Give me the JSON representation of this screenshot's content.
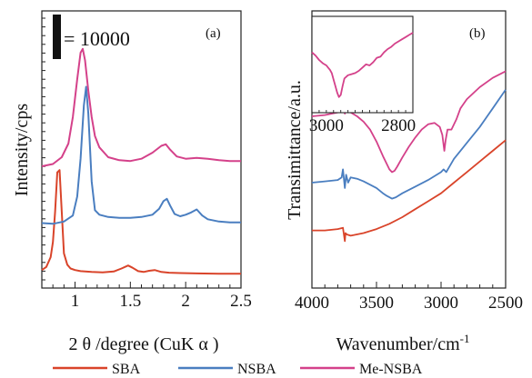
{
  "chart_data": [
    {
      "type": "line",
      "panel_label": "(a)",
      "xlabel": "2 θ /degree (CuK α )",
      "ylabel": "Intensity/cps",
      "scale_bar_label": "= 10000",
      "scale_bar_value": 10000,
      "xlim": [
        0.7,
        2.5
      ],
      "x_ticks": [
        "1",
        "1.5",
        "2",
        "2.5"
      ],
      "x_tick_values": [
        1.0,
        1.5,
        2.0,
        2.5
      ],
      "ylim": [
        0,
        30000
      ],
      "series": [
        {
          "name": "SBA",
          "color": "#d9442a",
          "x": [
            0.7,
            0.74,
            0.78,
            0.8,
            0.82,
            0.84,
            0.86,
            0.88,
            0.9,
            0.93,
            0.96,
            1.0,
            1.05,
            1.15,
            1.25,
            1.35,
            1.42,
            1.48,
            1.52,
            1.57,
            1.62,
            1.67,
            1.72,
            1.78,
            1.85,
            1.95,
            2.1,
            2.3,
            2.5
          ],
          "y": [
            1300,
            1700,
            3000,
            5000,
            9000,
            14200,
            14500,
            9000,
            3500,
            2000,
            1500,
            1300,
            1150,
            1050,
            1000,
            1100,
            1500,
            1900,
            1600,
            1150,
            1050,
            1200,
            1300,
            1050,
            950,
            900,
            850,
            800,
            800
          ]
        },
        {
          "name": "NSBA",
          "color": "#4a7ec0",
          "x": [
            0.7,
            0.8,
            0.9,
            0.98,
            1.02,
            1.05,
            1.08,
            1.1,
            1.12,
            1.15,
            1.18,
            1.22,
            1.3,
            1.4,
            1.5,
            1.6,
            1.7,
            1.76,
            1.8,
            1.83,
            1.86,
            1.9,
            1.95,
            2.0,
            2.05,
            2.1,
            2.15,
            2.2,
            2.3,
            2.4,
            2.5
          ],
          "y": [
            7500,
            7400,
            7700,
            8500,
            11000,
            16000,
            23000,
            25500,
            22000,
            13000,
            9200,
            8600,
            8300,
            8200,
            8200,
            8300,
            8600,
            9400,
            10400,
            10700,
            9800,
            8700,
            8400,
            8600,
            8900,
            9300,
            8500,
            8000,
            7700,
            7600,
            7600
          ]
        },
        {
          "name": "Me-NSBA",
          "color": "#d4418a",
          "x": [
            0.7,
            0.8,
            0.88,
            0.94,
            0.98,
            1.02,
            1.05,
            1.07,
            1.09,
            1.12,
            1.15,
            1.18,
            1.22,
            1.3,
            1.4,
            1.5,
            1.6,
            1.7,
            1.78,
            1.82,
            1.86,
            1.92,
            2.0,
            2.1,
            2.2,
            2.3,
            2.4,
            2.5
          ],
          "y": [
            15000,
            15300,
            16200,
            18000,
            21500,
            26500,
            30000,
            30500,
            29000,
            25000,
            21500,
            19000,
            17500,
            16200,
            15800,
            15700,
            16000,
            16800,
            17700,
            17900,
            17200,
            16300,
            16000,
            16100,
            16000,
            15800,
            15700,
            15700
          ]
        }
      ]
    },
    {
      "type": "line",
      "panel_label": "(b)",
      "xlabel": "Wavenumber/cm",
      "xlabel_superscript": "-1",
      "ylabel": "Transimittance/a.u.",
      "xlim": [
        4000,
        2500
      ],
      "x_ticks": [
        "4000",
        "3500",
        "3000",
        "2500"
      ],
      "x_tick_values": [
        4000,
        3500,
        3000,
        2500
      ],
      "ylim": [
        0,
        100
      ],
      "series": [
        {
          "name": "SBA",
          "color": "#d9442a",
          "x": [
            4000,
            3900,
            3800,
            3760,
            3745,
            3740,
            3730,
            3700,
            3600,
            3500,
            3400,
            3300,
            3200,
            3100,
            3000,
            2900,
            2800,
            2700,
            2600,
            2500
          ],
          "y": [
            20,
            20,
            20.5,
            21,
            16,
            19,
            18.5,
            18,
            19,
            20.5,
            22.5,
            25,
            28,
            31,
            34,
            38,
            42,
            46,
            50,
            54
          ]
        },
        {
          "name": "NSBA",
          "color": "#4a7ec0",
          "x": [
            4000,
            3900,
            3800,
            3770,
            3760,
            3745,
            3735,
            3720,
            3700,
            3650,
            3600,
            3500,
            3450,
            3420,
            3400,
            3380,
            3350,
            3300,
            3200,
            3100,
            3000,
            2980,
            2960,
            2900,
            2800,
            2700,
            2600,
            2500
          ],
          "y": [
            38,
            38.5,
            39,
            40,
            43,
            36,
            41,
            38,
            40,
            39.5,
            38.5,
            36,
            34,
            33,
            32.5,
            32,
            32.5,
            34,
            36.5,
            39,
            42,
            43,
            42,
            47,
            53,
            59,
            66,
            73
          ]
        },
        {
          "name": "Me-NSBA",
          "color": "#d4418a",
          "x": [
            4000,
            3900,
            3800,
            3780,
            3760,
            3745,
            3730,
            3700,
            3650,
            3600,
            3550,
            3500,
            3450,
            3400,
            3380,
            3360,
            3340,
            3300,
            3250,
            3200,
            3150,
            3100,
            3050,
            3010,
            2990,
            2975,
            2965,
            2950,
            2920,
            2880,
            2850,
            2800,
            2700,
            2600,
            2500
          ],
          "y": [
            63,
            63.5,
            64.5,
            66,
            67,
            64,
            66,
            64.5,
            63,
            61,
            58,
            53.5,
            48,
            43,
            42,
            42.5,
            44,
            47.5,
            51.5,
            55,
            58,
            60,
            60.5,
            59,
            56,
            50,
            54,
            58,
            58,
            62,
            66,
            69.5,
            74,
            77.5,
            80
          ]
        }
      ],
      "inset": {
        "x_ticks": [
          "3000",
          "2800"
        ],
        "x_tick_values": [
          3000,
          2800
        ],
        "xlim": [
          3040,
          2760
        ],
        "series": {
          "name": "Me-NSBA",
          "color": "#d4418a",
          "x": [
            3040,
            3030,
            3020,
            3010,
            3000,
            2995,
            2990,
            2985,
            2980,
            2975,
            2970,
            2965,
            2960,
            2955,
            2950,
            2940,
            2930,
            2920,
            2910,
            2900,
            2890,
            2880,
            2870,
            2860,
            2850,
            2840,
            2830,
            2820,
            2810,
            2800,
            2790,
            2780,
            2770,
            2760
          ],
          "y": [
            62,
            59,
            55,
            52,
            50,
            48,
            46,
            43,
            37,
            31,
            25,
            21,
            23,
            31,
            38,
            41,
            42,
            43,
            45,
            48,
            51,
            50,
            53,
            57,
            58,
            62,
            65,
            67,
            70,
            72,
            74,
            76,
            78,
            80
          ]
        }
      }
    }
  ],
  "legend": [
    {
      "label": "SBA",
      "color": "#d9442a"
    },
    {
      "label": "NSBA",
      "color": "#4a7ec0"
    },
    {
      "label": "Me-NSBA",
      "color": "#d4418a"
    }
  ]
}
